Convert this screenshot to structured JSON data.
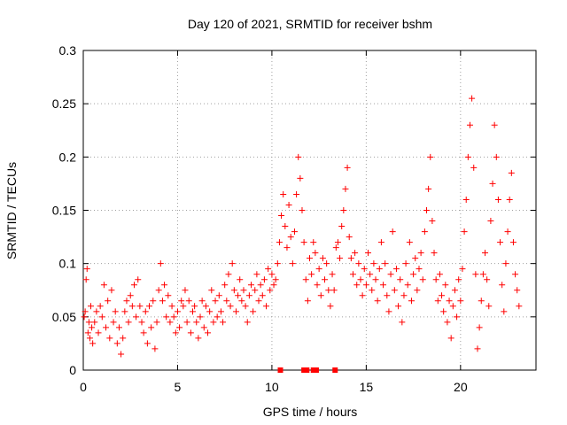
{
  "chart_data": {
    "type": "scatter",
    "title": "Day 120 of 2021, SRMTID for receiver bshm",
    "xlabel": "GPS time / hours",
    "ylabel": "SRMTID / TECUs",
    "xlim": [
      0,
      24
    ],
    "ylim": [
      0,
      0.3
    ],
    "xticks": [
      0,
      5,
      10,
      15,
      20
    ],
    "yticks": [
      0,
      0.05,
      0.1,
      0.15,
      0.2,
      0.25,
      0.3
    ],
    "xtick_labels": [
      "0",
      "5",
      "10",
      "15",
      "20"
    ],
    "ytick_labels": [
      "0",
      "0.05",
      "0.1",
      "0.15",
      "0.2",
      "0.25",
      "0.3"
    ],
    "grid": true,
    "marker": "+",
    "color": "#ff0000",
    "series": [
      {
        "name": "SRMTID",
        "points": [
          [
            0.05,
            0.05
          ],
          [
            0.1,
            0.055
          ],
          [
            0.15,
            0.085
          ],
          [
            0.2,
            0.095
          ],
          [
            0.25,
            0.035
          ],
          [
            0.3,
            0.045
          ],
          [
            0.35,
            0.03
          ],
          [
            0.4,
            0.06
          ],
          [
            0.45,
            0.04
          ],
          [
            0.5,
            0.025
          ],
          [
            0.6,
            0.045
          ],
          [
            0.7,
            0.055
          ],
          [
            0.8,
            0.035
          ],
          [
            0.9,
            0.06
          ],
          [
            1.0,
            0.05
          ],
          [
            1.1,
            0.08
          ],
          [
            1.2,
            0.04
          ],
          [
            1.3,
            0.065
          ],
          [
            1.4,
            0.03
          ],
          [
            1.5,
            0.075
          ],
          [
            1.6,
            0.045
          ],
          [
            1.7,
            0.055
          ],
          [
            1.8,
            0.025
          ],
          [
            1.9,
            0.04
          ],
          [
            2.0,
            0.015
          ],
          [
            2.1,
            0.03
          ],
          [
            2.2,
            0.055
          ],
          [
            2.3,
            0.065
          ],
          [
            2.4,
            0.045
          ],
          [
            2.5,
            0.07
          ],
          [
            2.6,
            0.06
          ],
          [
            2.7,
            0.08
          ],
          [
            2.8,
            0.05
          ],
          [
            2.9,
            0.085
          ],
          [
            3.0,
            0.06
          ],
          [
            3.1,
            0.045
          ],
          [
            3.2,
            0.035
          ],
          [
            3.3,
            0.055
          ],
          [
            3.4,
            0.025
          ],
          [
            3.5,
            0.06
          ],
          [
            3.6,
            0.04
          ],
          [
            3.7,
            0.065
          ],
          [
            3.8,
            0.02
          ],
          [
            3.9,
            0.045
          ],
          [
            4.0,
            0.075
          ],
          [
            4.1,
            0.1
          ],
          [
            4.2,
            0.065
          ],
          [
            4.3,
            0.08
          ],
          [
            4.4,
            0.05
          ],
          [
            4.5,
            0.07
          ],
          [
            4.6,
            0.045
          ],
          [
            4.7,
            0.06
          ],
          [
            4.8,
            0.05
          ],
          [
            4.9,
            0.035
          ],
          [
            5.0,
            0.055
          ],
          [
            5.1,
            0.04
          ],
          [
            5.2,
            0.065
          ],
          [
            5.3,
            0.06
          ],
          [
            5.4,
            0.075
          ],
          [
            5.5,
            0.045
          ],
          [
            5.6,
            0.065
          ],
          [
            5.7,
            0.035
          ],
          [
            5.8,
            0.055
          ],
          [
            5.9,
            0.06
          ],
          [
            6.0,
            0.045
          ],
          [
            6.1,
            0.03
          ],
          [
            6.2,
            0.05
          ],
          [
            6.3,
            0.065
          ],
          [
            6.4,
            0.04
          ],
          [
            6.5,
            0.06
          ],
          [
            6.6,
            0.035
          ],
          [
            6.7,
            0.055
          ],
          [
            6.8,
            0.075
          ],
          [
            6.9,
            0.045
          ],
          [
            7.0,
            0.065
          ],
          [
            7.1,
            0.05
          ],
          [
            7.2,
            0.07
          ],
          [
            7.3,
            0.055
          ],
          [
            7.4,
            0.045
          ],
          [
            7.5,
            0.08
          ],
          [
            7.6,
            0.065
          ],
          [
            7.7,
            0.09
          ],
          [
            7.8,
            0.06
          ],
          [
            7.9,
            0.1
          ],
          [
            8.0,
            0.075
          ],
          [
            8.1,
            0.055
          ],
          [
            8.2,
            0.07
          ],
          [
            8.3,
            0.085
          ],
          [
            8.4,
            0.065
          ],
          [
            8.5,
            0.075
          ],
          [
            8.6,
            0.06
          ],
          [
            8.7,
            0.045
          ],
          [
            8.8,
            0.07
          ],
          [
            8.9,
            0.08
          ],
          [
            9.0,
            0.055
          ],
          [
            9.1,
            0.075
          ],
          [
            9.2,
            0.09
          ],
          [
            9.3,
            0.065
          ],
          [
            9.4,
            0.08
          ],
          [
            9.5,
            0.07
          ],
          [
            9.6,
            0.085
          ],
          [
            9.7,
            0.06
          ],
          [
            9.8,
            0.095
          ],
          [
            9.9,
            0.075
          ],
          [
            10.0,
            0.09
          ],
          [
            10.1,
            0.08
          ],
          [
            10.2,
            0.085
          ],
          [
            10.3,
            0.1
          ],
          [
            10.4,
            0.12
          ],
          [
            10.5,
            0.145
          ],
          [
            10.6,
            0.165
          ],
          [
            10.7,
            0.135
          ],
          [
            10.8,
            0.115
          ],
          [
            10.9,
            0.155
          ],
          [
            11.0,
            0.125
          ],
          [
            11.1,
            0.1
          ],
          [
            11.2,
            0.13
          ],
          [
            11.3,
            0.165
          ],
          [
            11.4,
            0.2
          ],
          [
            11.5,
            0.18
          ],
          [
            11.6,
            0.15
          ],
          [
            11.7,
            0.12
          ],
          [
            11.8,
            0.085
          ],
          [
            11.9,
            0.065
          ],
          [
            12.0,
            0.105
          ],
          [
            12.1,
            0.09
          ],
          [
            12.2,
            0.12
          ],
          [
            12.3,
            0.11
          ],
          [
            12.4,
            0.08
          ],
          [
            12.5,
            0.095
          ],
          [
            12.6,
            0.07
          ],
          [
            12.7,
            0.105
          ],
          [
            12.8,
            0.085
          ],
          [
            12.9,
            0.1
          ],
          [
            13.0,
            0.075
          ],
          [
            13.1,
            0.06
          ],
          [
            13.2,
            0.09
          ],
          [
            13.3,
            0.075
          ],
          [
            13.4,
            0.115
          ],
          [
            13.5,
            0.12
          ],
          [
            13.6,
            0.105
          ],
          [
            13.7,
            0.135
          ],
          [
            13.8,
            0.15
          ],
          [
            13.9,
            0.17
          ],
          [
            14.0,
            0.19
          ],
          [
            14.1,
            0.125
          ],
          [
            14.2,
            0.105
          ],
          [
            14.3,
            0.09
          ],
          [
            14.4,
            0.11
          ],
          [
            14.5,
            0.08
          ],
          [
            14.6,
            0.1
          ],
          [
            14.7,
            0.085
          ],
          [
            14.8,
            0.07
          ],
          [
            14.9,
            0.095
          ],
          [
            15.0,
            0.08
          ],
          [
            15.1,
            0.11
          ],
          [
            15.2,
            0.09
          ],
          [
            15.3,
            0.075
          ],
          [
            15.4,
            0.1
          ],
          [
            15.5,
            0.085
          ],
          [
            15.6,
            0.065
          ],
          [
            15.7,
            0.095
          ],
          [
            15.8,
            0.12
          ],
          [
            15.9,
            0.08
          ],
          [
            16.0,
            0.1
          ],
          [
            16.1,
            0.07
          ],
          [
            16.2,
            0.055
          ],
          [
            16.3,
            0.09
          ],
          [
            16.4,
            0.13
          ],
          [
            16.5,
            0.075
          ],
          [
            16.6,
            0.095
          ],
          [
            16.7,
            0.06
          ],
          [
            16.8,
            0.085
          ],
          [
            16.9,
            0.045
          ],
          [
            17.0,
            0.07
          ],
          [
            17.1,
            0.1
          ],
          [
            17.2,
            0.08
          ],
          [
            17.3,
            0.12
          ],
          [
            17.4,
            0.065
          ],
          [
            17.5,
            0.09
          ],
          [
            17.6,
            0.105
          ],
          [
            17.7,
            0.075
          ],
          [
            17.8,
            0.095
          ],
          [
            17.9,
            0.11
          ],
          [
            18.0,
            0.085
          ],
          [
            18.1,
            0.13
          ],
          [
            18.2,
            0.15
          ],
          [
            18.3,
            0.17
          ],
          [
            18.4,
            0.2
          ],
          [
            18.5,
            0.14
          ],
          [
            18.6,
            0.11
          ],
          [
            18.7,
            0.085
          ],
          [
            18.8,
            0.065
          ],
          [
            18.9,
            0.09
          ],
          [
            19.0,
            0.07
          ],
          [
            19.1,
            0.055
          ],
          [
            19.2,
            0.08
          ],
          [
            19.3,
            0.045
          ],
          [
            19.4,
            0.065
          ],
          [
            19.5,
            0.03
          ],
          [
            19.6,
            0.06
          ],
          [
            19.7,
            0.075
          ],
          [
            19.8,
            0.05
          ],
          [
            19.9,
            0.085
          ],
          [
            20.0,
            0.065
          ],
          [
            20.1,
            0.095
          ],
          [
            20.2,
            0.13
          ],
          [
            20.3,
            0.16
          ],
          [
            20.4,
            0.2
          ],
          [
            20.5,
            0.23
          ],
          [
            20.6,
            0.255
          ],
          [
            20.7,
            0.19
          ],
          [
            20.8,
            0.09
          ],
          [
            20.9,
            0.02
          ],
          [
            21.0,
            0.04
          ],
          [
            21.1,
            0.065
          ],
          [
            21.2,
            0.09
          ],
          [
            21.3,
            0.11
          ],
          [
            21.4,
            0.085
          ],
          [
            21.5,
            0.06
          ],
          [
            21.6,
            0.14
          ],
          [
            21.7,
            0.175
          ],
          [
            21.8,
            0.23
          ],
          [
            21.9,
            0.2
          ],
          [
            22.0,
            0.16
          ],
          [
            22.1,
            0.12
          ],
          [
            22.2,
            0.08
          ],
          [
            22.3,
            0.055
          ],
          [
            22.4,
            0.1
          ],
          [
            22.5,
            0.13
          ],
          [
            22.6,
            0.16
          ],
          [
            22.7,
            0.185
          ],
          [
            22.8,
            0.12
          ],
          [
            22.9,
            0.09
          ],
          [
            23.0,
            0.075
          ],
          [
            23.1,
            0.06
          ]
        ]
      }
    ],
    "zero_markers": [
      10.45,
      11.7,
      11.85,
      12.2,
      12.35,
      13.35
    ]
  }
}
